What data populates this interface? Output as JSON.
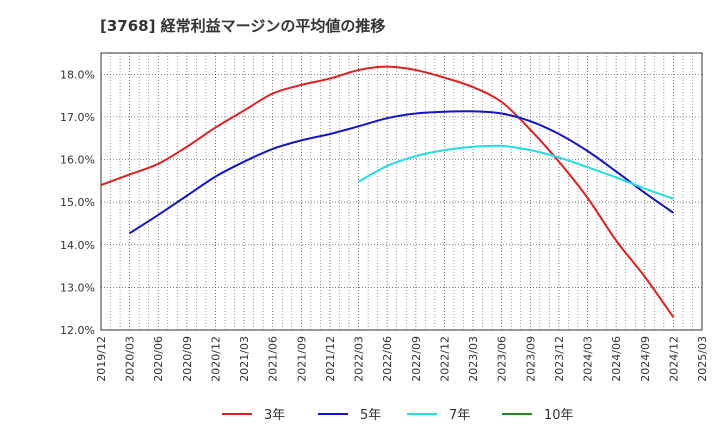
{
  "chart_data": {
    "type": "line",
    "title": "[3768]  経常利益マージンの平均値の推移",
    "xlabel": "",
    "ylabel": "",
    "x_ticks": [
      "2019/12",
      "2020/03",
      "2020/06",
      "2020/09",
      "2020/12",
      "2021/03",
      "2021/06",
      "2021/09",
      "2021/12",
      "2022/03",
      "2022/06",
      "2022/09",
      "2022/12",
      "2023/03",
      "2023/06",
      "2023/09",
      "2023/12",
      "2024/03",
      "2024/06",
      "2024/09",
      "2024/12",
      "2025/03"
    ],
    "y_ticks": [
      "12.0%",
      "13.0%",
      "14.0%",
      "15.0%",
      "16.0%",
      "17.0%",
      "18.0%"
    ],
    "ylim": [
      12.0,
      18.5
    ],
    "grid": true,
    "legend_position": "bottom",
    "series": [
      {
        "name": "3年",
        "color": "#e02020",
        "x": [
          "2019/12",
          "2020/03",
          "2020/06",
          "2020/09",
          "2020/12",
          "2021/03",
          "2021/06",
          "2021/09",
          "2021/12",
          "2022/03",
          "2022/06",
          "2022/09",
          "2022/12",
          "2023/03",
          "2023/06",
          "2023/09",
          "2023/12",
          "2024/03",
          "2024/06",
          "2024/09",
          "2024/12"
        ],
        "values": [
          15.4,
          15.65,
          15.9,
          16.3,
          16.75,
          17.15,
          17.55,
          17.75,
          17.9,
          18.1,
          18.18,
          18.1,
          17.92,
          17.7,
          17.35,
          16.7,
          15.95,
          15.1,
          14.1,
          13.25,
          12.3
        ]
      },
      {
        "name": "5年",
        "color": "#1515c8",
        "x": [
          "2020/03",
          "2020/06",
          "2020/09",
          "2020/12",
          "2021/03",
          "2021/06",
          "2021/09",
          "2021/12",
          "2022/03",
          "2022/06",
          "2022/09",
          "2022/12",
          "2023/03",
          "2023/06",
          "2023/09",
          "2023/12",
          "2024/03",
          "2024/06",
          "2024/09",
          "2024/12"
        ],
        "values": [
          14.27,
          14.7,
          15.15,
          15.6,
          15.95,
          16.25,
          16.45,
          16.6,
          16.78,
          16.97,
          17.08,
          17.12,
          17.13,
          17.08,
          16.9,
          16.6,
          16.2,
          15.72,
          15.22,
          14.75
        ]
      },
      {
        "name": "7年",
        "color": "#22dde8",
        "x": [
          "2022/03",
          "2022/06",
          "2022/09",
          "2022/12",
          "2023/03",
          "2023/06",
          "2023/09",
          "2023/12",
          "2024/03",
          "2024/06",
          "2024/09",
          "2024/12"
        ],
        "values": [
          15.48,
          15.85,
          16.08,
          16.22,
          16.3,
          16.32,
          16.22,
          16.05,
          15.82,
          15.58,
          15.32,
          15.08
        ]
      },
      {
        "name": "10年",
        "color": "#1e8c1e",
        "x": [],
        "values": []
      }
    ]
  }
}
